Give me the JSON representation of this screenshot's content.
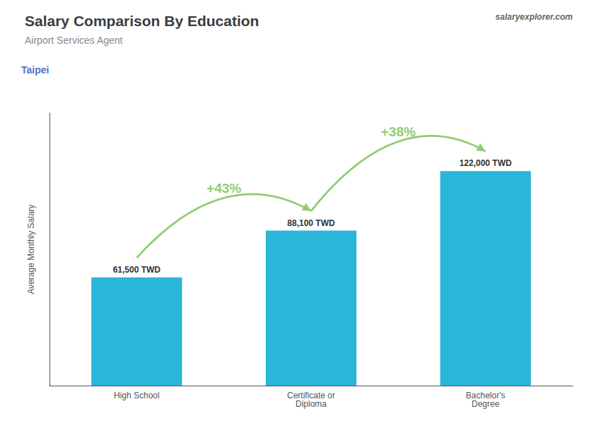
{
  "chart_data": {
    "type": "bar",
    "title": "Salary Comparison By Education",
    "subtitle": "Airport Services Agent",
    "ylabel": "Average Monthly Salary",
    "annotations": [
      {
        "text": "Taipei"
      },
      {
        "text": "salaryexplorer.com"
      },
      {
        "text": "+43%",
        "from": "High School",
        "to": "Certificate or\nDiploma"
      },
      {
        "text": "+38%",
        "from": "Certificate or\nDiploma",
        "to": "Bachelor's\nDegree"
      }
    ],
    "categories": [
      "High School",
      "Certificate or\nDiploma",
      "Bachelor's\nDegree"
    ],
    "values": [
      61500,
      88100,
      122000
    ],
    "value_labels": [
      "61,500 TWD",
      "88,100 TWD",
      "122,000 TWD"
    ],
    "data_labels": true,
    "color": "#29b6d8",
    "ylim": [
      0,
      155000
    ],
    "grid": false,
    "tick_labels": false
  }
}
